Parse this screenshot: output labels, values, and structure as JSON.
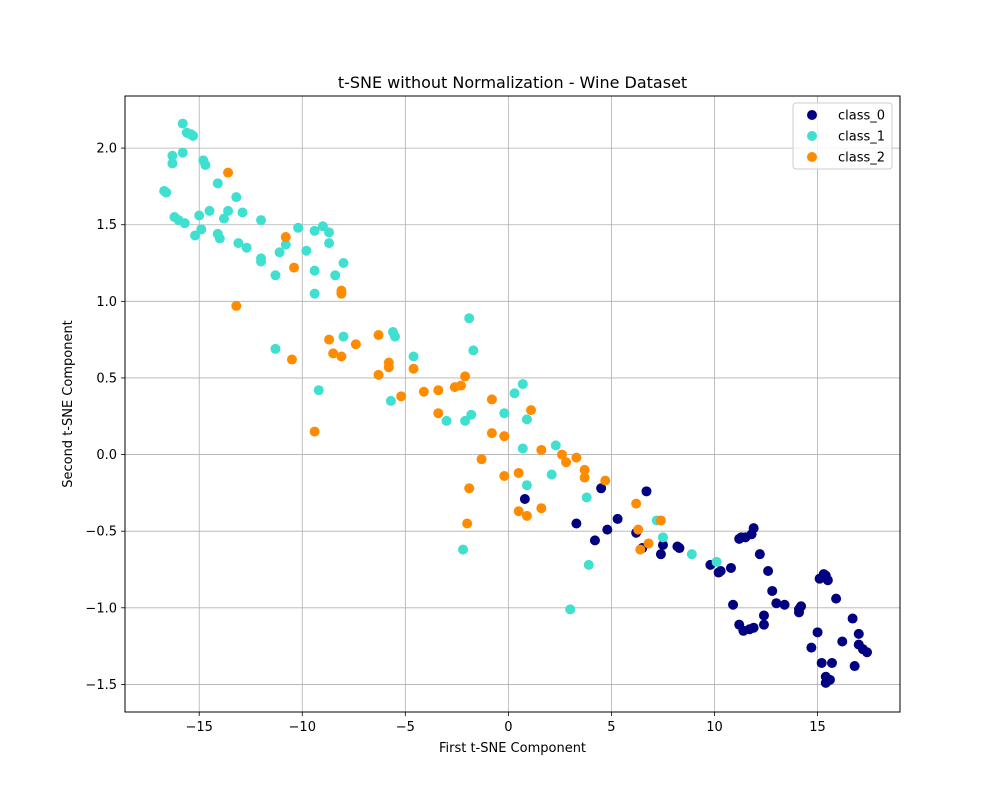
{
  "chart_data": {
    "type": "scatter",
    "title": "t-SNE without Normalization - Wine Dataset",
    "xlabel": "First t-SNE Component",
    "ylabel": "Second t-SNE Component",
    "xlim": [
      -18.6,
      19.0
    ],
    "ylim": [
      -1.68,
      2.34
    ],
    "xticks": [
      -15,
      -10,
      -5,
      0,
      5,
      10,
      15
    ],
    "xtick_labels": [
      "−15",
      "−10",
      "−5",
      "0",
      "5",
      "10",
      "15"
    ],
    "yticks": [
      -1.5,
      -1.0,
      -0.5,
      0.0,
      0.5,
      1.0,
      1.5,
      2.0
    ],
    "ytick_labels": [
      "−1.5",
      "−1.0",
      "−0.5",
      "0.0",
      "0.5",
      "1.0",
      "1.5",
      "2.0"
    ],
    "grid": true,
    "legend_position": "top-right",
    "series": [
      {
        "name": "class_0",
        "color": "#000080",
        "points": [
          [
            0.8,
            -0.29
          ],
          [
            3.3,
            -0.45
          ],
          [
            4.2,
            -0.56
          ],
          [
            4.5,
            -0.22
          ],
          [
            4.8,
            -0.49
          ],
          [
            5.3,
            -0.42
          ],
          [
            6.2,
            -0.51
          ],
          [
            6.5,
            -0.61
          ],
          [
            6.7,
            -0.24
          ],
          [
            7.4,
            -0.65
          ],
          [
            7.5,
            -0.59
          ],
          [
            8.2,
            -0.6
          ],
          [
            8.3,
            -0.61
          ],
          [
            9.8,
            -0.72
          ],
          [
            10.2,
            -0.77
          ],
          [
            10.3,
            -0.76
          ],
          [
            10.8,
            -0.74
          ],
          [
            10.9,
            -0.98
          ],
          [
            11.2,
            -0.55
          ],
          [
            11.2,
            -1.11
          ],
          [
            11.3,
            -0.54
          ],
          [
            11.4,
            -1.15
          ],
          [
            11.5,
            -0.54
          ],
          [
            11.7,
            -1.14
          ],
          [
            11.8,
            -0.52
          ],
          [
            11.9,
            -0.48
          ],
          [
            11.9,
            -1.13
          ],
          [
            12.2,
            -0.65
          ],
          [
            12.4,
            -1.05
          ],
          [
            12.4,
            -1.11
          ],
          [
            12.6,
            -0.76
          ],
          [
            12.8,
            -0.89
          ],
          [
            13.0,
            -0.97
          ],
          [
            13.4,
            -0.98
          ],
          [
            14.1,
            -1.01
          ],
          [
            14.1,
            -1.03
          ],
          [
            14.2,
            -0.99
          ],
          [
            14.7,
            -1.26
          ],
          [
            15.0,
            -1.16
          ],
          [
            15.1,
            -0.81
          ],
          [
            15.2,
            -1.36
          ],
          [
            15.3,
            -0.78
          ],
          [
            15.4,
            -1.49
          ],
          [
            15.4,
            -1.45
          ],
          [
            15.4,
            -0.79
          ],
          [
            15.5,
            -0.82
          ],
          [
            15.6,
            -1.47
          ],
          [
            15.7,
            -1.36
          ],
          [
            15.9,
            -0.94
          ],
          [
            16.2,
            -1.22
          ],
          [
            16.7,
            -1.07
          ],
          [
            16.8,
            -1.38
          ],
          [
            17.0,
            -1.17
          ],
          [
            17.0,
            -1.24
          ],
          [
            17.2,
            -1.27
          ],
          [
            17.4,
            -1.29
          ]
        ]
      },
      {
        "name": "class_1",
        "color": "#40E0D0",
        "points": [
          [
            -16.7,
            1.72
          ],
          [
            -16.6,
            1.71
          ],
          [
            -16.3,
            1.95
          ],
          [
            -16.3,
            1.9
          ],
          [
            -16.2,
            1.55
          ],
          [
            -16.0,
            1.53
          ],
          [
            -15.8,
            2.16
          ],
          [
            -15.8,
            1.97
          ],
          [
            -15.7,
            1.51
          ],
          [
            -15.6,
            2.1
          ],
          [
            -15.4,
            2.09
          ],
          [
            -15.3,
            2.08
          ],
          [
            -15.2,
            1.43
          ],
          [
            -15.0,
            1.56
          ],
          [
            -14.9,
            1.47
          ],
          [
            -14.8,
            1.92
          ],
          [
            -14.7,
            1.89
          ],
          [
            -14.5,
            1.59
          ],
          [
            -14.1,
            1.77
          ],
          [
            -14.1,
            1.44
          ],
          [
            -14.0,
            1.41
          ],
          [
            -13.8,
            1.54
          ],
          [
            -13.6,
            1.59
          ],
          [
            -13.2,
            1.68
          ],
          [
            -13.1,
            1.38
          ],
          [
            -12.9,
            1.58
          ],
          [
            -12.7,
            1.35
          ],
          [
            -12.0,
            1.53
          ],
          [
            -12.0,
            1.28
          ],
          [
            -12.0,
            1.26
          ],
          [
            -11.3,
            1.17
          ],
          [
            -11.1,
            1.32
          ],
          [
            -10.8,
            1.37
          ],
          [
            -10.2,
            1.48
          ],
          [
            -9.8,
            1.33
          ],
          [
            -9.4,
            1.46
          ],
          [
            -9.4,
            1.2
          ],
          [
            -9.4,
            1.05
          ],
          [
            -9.0,
            1.49
          ],
          [
            -8.7,
            1.45
          ],
          [
            -8.7,
            1.38
          ],
          [
            -8.4,
            1.17
          ],
          [
            -8.0,
            1.25
          ],
          [
            -11.3,
            0.69
          ],
          [
            -9.2,
            0.42
          ],
          [
            -8.0,
            0.77
          ],
          [
            -5.6,
            0.8
          ],
          [
            -5.5,
            0.77
          ],
          [
            -5.7,
            0.35
          ],
          [
            -4.6,
            0.64
          ],
          [
            -3.0,
            0.22
          ],
          [
            -2.1,
            0.22
          ],
          [
            -1.9,
            0.89
          ],
          [
            -1.7,
            0.68
          ],
          [
            -1.8,
            0.26
          ],
          [
            -2.2,
            -0.62
          ],
          [
            -0.2,
            0.27
          ],
          [
            0.3,
            0.4
          ],
          [
            0.7,
            0.46
          ],
          [
            0.7,
            0.04
          ],
          [
            0.9,
            0.23
          ],
          [
            0.9,
            -0.2
          ],
          [
            2.1,
            -0.13
          ],
          [
            2.3,
            0.06
          ],
          [
            3.0,
            -1.01
          ],
          [
            3.8,
            -0.28
          ],
          [
            3.9,
            -0.72
          ],
          [
            7.2,
            -0.43
          ],
          [
            7.5,
            -0.54
          ],
          [
            8.9,
            -0.65
          ],
          [
            10.1,
            -0.7
          ]
        ]
      },
      {
        "name": "class_2",
        "color": "#FF8C00",
        "points": [
          [
            -13.6,
            1.84
          ],
          [
            -10.8,
            1.42
          ],
          [
            -10.4,
            1.22
          ],
          [
            -13.2,
            0.97
          ],
          [
            -10.5,
            0.62
          ],
          [
            -9.4,
            0.15
          ],
          [
            -8.7,
            0.75
          ],
          [
            -8.5,
            0.66
          ],
          [
            -8.1,
            0.64
          ],
          [
            -8.1,
            1.07
          ],
          [
            -8.1,
            1.05
          ],
          [
            -7.4,
            0.72
          ],
          [
            -6.3,
            0.78
          ],
          [
            -6.3,
            0.52
          ],
          [
            -5.8,
            0.6
          ],
          [
            -5.8,
            0.57
          ],
          [
            -5.2,
            0.38
          ],
          [
            -4.6,
            0.56
          ],
          [
            -4.1,
            0.41
          ],
          [
            -3.4,
            0.42
          ],
          [
            -3.4,
            0.27
          ],
          [
            -2.6,
            0.44
          ],
          [
            -2.3,
            0.45
          ],
          [
            -2.1,
            0.51
          ],
          [
            -1.9,
            -0.22
          ],
          [
            -2.0,
            -0.45
          ],
          [
            -1.3,
            -0.03
          ],
          [
            -0.8,
            0.36
          ],
          [
            -0.8,
            0.14
          ],
          [
            -0.2,
            0.12
          ],
          [
            -0.2,
            -0.14
          ],
          [
            0.5,
            -0.12
          ],
          [
            0.5,
            -0.37
          ],
          [
            0.9,
            -0.4
          ],
          [
            1.1,
            0.29
          ],
          [
            1.6,
            0.03
          ],
          [
            1.6,
            -0.35
          ],
          [
            2.6,
            0.0
          ],
          [
            2.8,
            -0.05
          ],
          [
            3.3,
            -0.02
          ],
          [
            3.7,
            -0.1
          ],
          [
            3.7,
            -0.15
          ],
          [
            4.7,
            -0.17
          ],
          [
            6.2,
            -0.32
          ],
          [
            6.3,
            -0.49
          ],
          [
            6.4,
            -0.62
          ],
          [
            6.8,
            -0.58
          ],
          [
            7.4,
            -0.43
          ]
        ]
      }
    ]
  }
}
